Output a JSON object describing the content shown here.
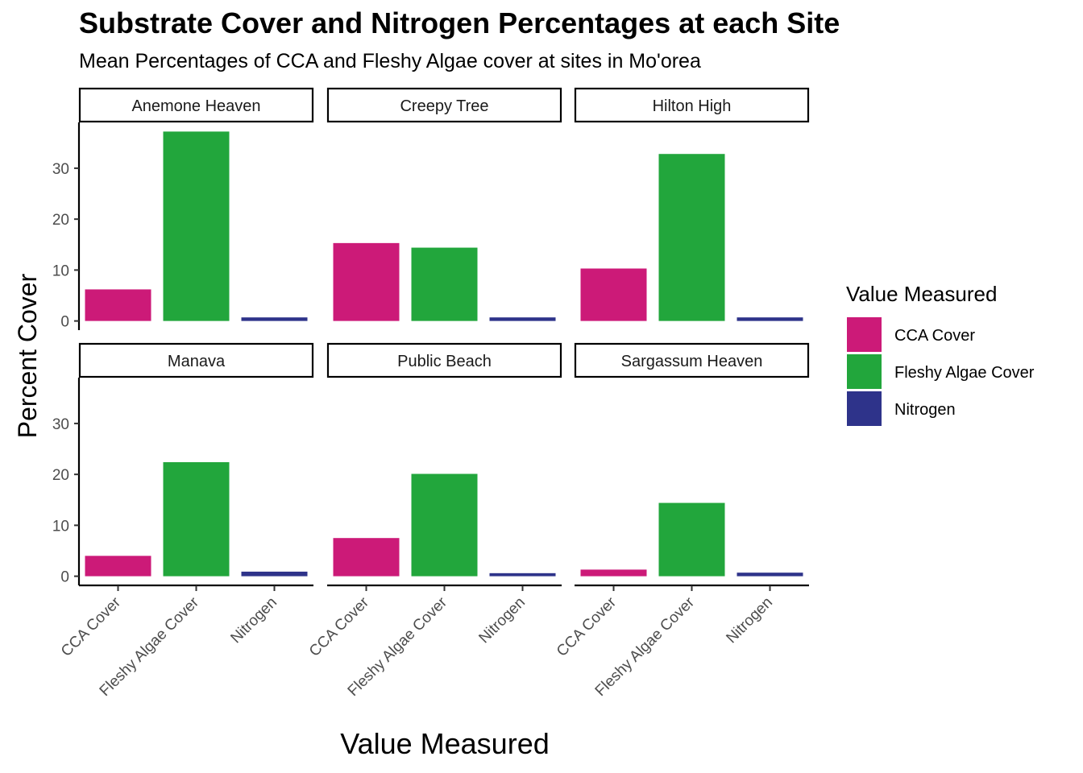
{
  "chart_data": {
    "type": "bar",
    "title": "Substrate Cover and Nitrogen Percentages at each Site",
    "subtitle": "Mean Percentages of CCA and Fleshy Algae cover at sites in Mo'orea",
    "xlabel": "Value Measured",
    "ylabel": "Percent Cover",
    "categories": [
      "CCA Cover",
      "Fleshy Algae Cover",
      "Nitrogen"
    ],
    "colors": [
      "#cc1a78",
      "#22a63c",
      "#2e338a"
    ],
    "ylim": [
      -1.8,
      39
    ],
    "yticks": [
      0,
      10,
      20,
      30
    ],
    "grid": false,
    "legend": {
      "title": "Value Measured",
      "position": "right",
      "entries": [
        "CCA Cover",
        "Fleshy Algae Cover",
        "Nitrogen"
      ]
    },
    "facets": [
      {
        "name": "Anemone Heaven",
        "values": [
          6.2,
          37.2,
          0.7
        ]
      },
      {
        "name": "Creepy Tree",
        "values": [
          15.3,
          14.4,
          0.7
        ]
      },
      {
        "name": "Hilton High",
        "values": [
          10.3,
          32.8,
          0.7
        ]
      },
      {
        "name": "Manava",
        "values": [
          4.0,
          22.4,
          0.9
        ]
      },
      {
        "name": "Public Beach",
        "values": [
          7.5,
          20.1,
          0.6
        ]
      },
      {
        "name": "Sargassum Heaven",
        "values": [
          1.3,
          14.4,
          0.7
        ]
      }
    ]
  }
}
